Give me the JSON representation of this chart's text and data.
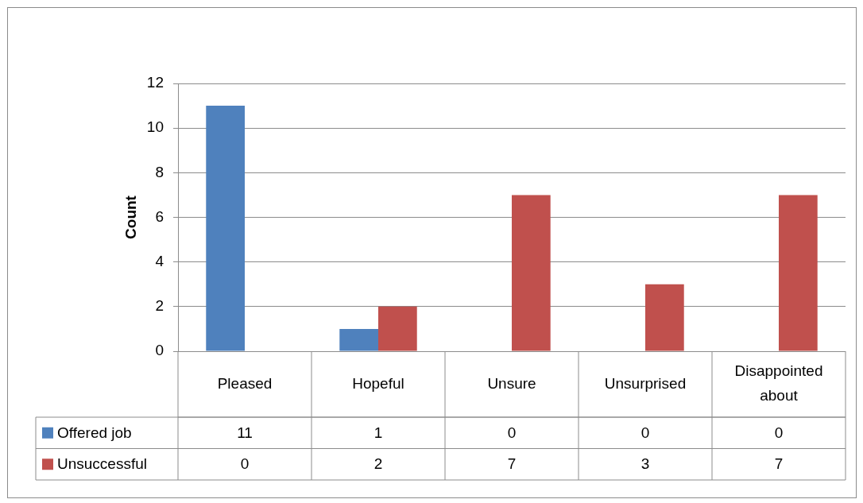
{
  "chart_data": {
    "type": "bar",
    "ylabel": "Count",
    "categories": [
      "Pleased",
      "Hopeful",
      "Unsure",
      "Unsurprised",
      "Disappointed about"
    ],
    "series": [
      {
        "name": "Offered job",
        "color": "#4f81bd",
        "values": [
          11,
          1,
          0,
          0,
          0
        ]
      },
      {
        "name": "Unsuccessful",
        "color": "#c0504d",
        "values": [
          0,
          2,
          7,
          3,
          7
        ]
      }
    ],
    "ylim": [
      0,
      12
    ],
    "yticks": [
      0,
      2,
      4,
      6,
      8,
      10,
      12
    ],
    "grid": "y",
    "legend": "bottom",
    "data_labels": true
  }
}
